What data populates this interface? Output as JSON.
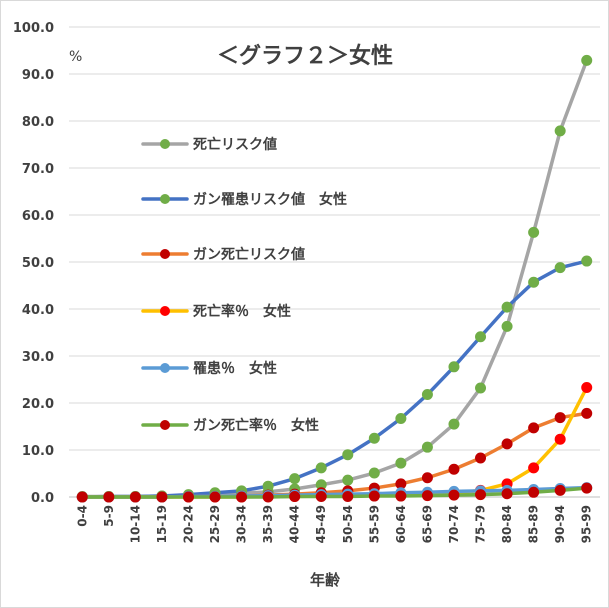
{
  "chart_data": {
    "type": "line",
    "title": "＜グラフ２＞女性",
    "unit_label": "%",
    "xlabel": "年齢",
    "ylabel": "",
    "ylim": [
      0,
      100
    ],
    "y_ticks": [
      "0.0",
      "10.0",
      "20.0",
      "30.0",
      "40.0",
      "50.0",
      "60.0",
      "70.0",
      "80.0",
      "90.0",
      "100.0"
    ],
    "grid": true,
    "legend_position": "left",
    "categories": [
      "0-4",
      "5-9",
      "10-14",
      "15-19",
      "20-24",
      "25-29",
      "30-34",
      "35-39",
      "40-44",
      "45-49",
      "50-54",
      "55-59",
      "60-64",
      "65-69",
      "70-74",
      "75-79",
      "80-84",
      "85-89",
      "90-94",
      "95-99"
    ],
    "series": [
      {
        "name": "死亡リスク値",
        "line_color": "#a5a5a5",
        "marker_color": "#70ad47",
        "values": [
          0.1,
          0.1,
          0.1,
          0.2,
          0.3,
          0.5,
          0.8,
          1.1,
          1.7,
          2.6,
          3.6,
          5.1,
          7.2,
          10.6,
          15.5,
          23.2,
          36.3,
          56.3,
          77.9,
          92.9
        ]
      },
      {
        "name": "ガン罹患リスク値　女性",
        "line_color": "#4472c4",
        "marker_color": "#70ad47",
        "values": [
          0.0,
          0.1,
          0.1,
          0.2,
          0.5,
          0.9,
          1.3,
          2.3,
          3.9,
          6.2,
          9.0,
          12.5,
          16.7,
          21.8,
          27.7,
          34.1,
          40.4,
          45.7,
          48.8,
          50.2
        ]
      },
      {
        "name": "ガン死亡リスク値",
        "line_color": "#ed7d31",
        "marker_color": "#c00000",
        "values": [
          0.0,
          0.0,
          0.0,
          0.0,
          0.1,
          0.1,
          0.2,
          0.4,
          0.6,
          0.9,
          1.3,
          1.9,
          2.8,
          4.1,
          5.9,
          8.3,
          11.3,
          14.7,
          16.9,
          17.8
        ]
      },
      {
        "name": "死亡率％　女性",
        "line_color": "#ffc000",
        "marker_color": "#ff0000",
        "values": [
          0.0,
          0.0,
          0.0,
          0.0,
          0.0,
          0.0,
          0.0,
          0.1,
          0.1,
          0.2,
          0.2,
          0.3,
          0.4,
          0.5,
          0.8,
          1.4,
          2.8,
          6.2,
          12.3,
          23.3
        ]
      },
      {
        "name": "罹患％　女性",
        "line_color": "#5b9bd5",
        "marker_color": "#5b9bd5",
        "values": [
          0.0,
          0.0,
          0.0,
          0.0,
          0.1,
          0.1,
          0.2,
          0.3,
          0.4,
          0.5,
          0.6,
          0.7,
          0.9,
          1.0,
          1.2,
          1.3,
          1.4,
          1.6,
          1.8,
          2.0
        ]
      },
      {
        "name": "ガン死亡率％　女性",
        "line_color": "#70ad47",
        "marker_color": "#c00000",
        "values": [
          0.0,
          0.0,
          0.0,
          0.0,
          0.0,
          0.0,
          0.0,
          0.0,
          0.1,
          0.1,
          0.1,
          0.2,
          0.2,
          0.3,
          0.4,
          0.5,
          0.7,
          1.0,
          1.4,
          1.9
        ]
      }
    ]
  }
}
